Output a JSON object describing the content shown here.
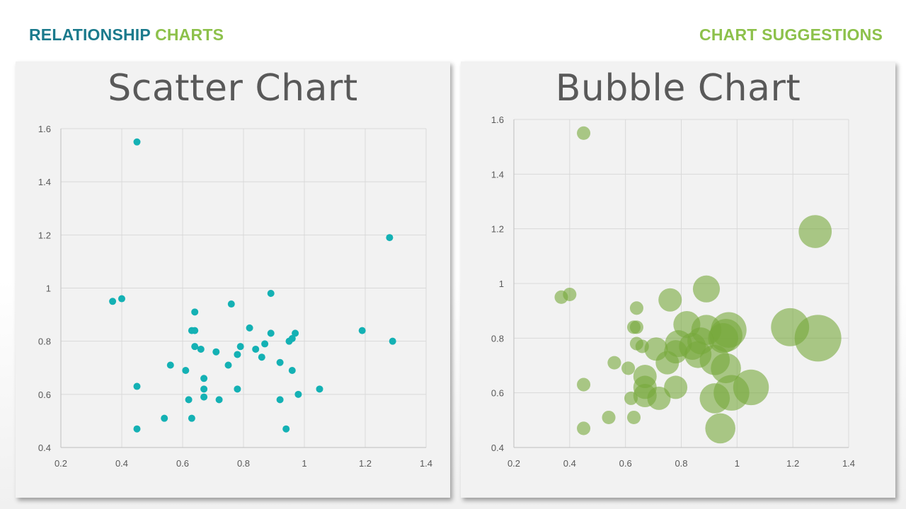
{
  "header": {
    "left_part1": "RELATIONSHIP",
    "left_part2": "CHARTS",
    "right": "CHART SUGGESTIONS"
  },
  "colors": {
    "teal": "#1b7a8c",
    "green": "#8dc14b",
    "scatter_point": "#14b1b4",
    "bubble_fill": "#77a83a",
    "gridline": "#d9d9d9",
    "axis_text": "#595959"
  },
  "chart_data": [
    {
      "type": "scatter",
      "title": "Scatter Chart",
      "xlim": [
        0.2,
        1.4
      ],
      "ylim": [
        0.4,
        1.6
      ],
      "x_ticks": [
        "0.2",
        "0.4",
        "0.6",
        "0.8",
        "1",
        "1.2",
        "1.4"
      ],
      "y_ticks": [
        "0.4",
        "0.6",
        "0.8",
        "1",
        "1.2",
        "1.4",
        "1.6"
      ],
      "grid": true,
      "points": [
        [
          0.45,
          1.55
        ],
        [
          1.28,
          1.19
        ],
        [
          1.29,
          0.8
        ],
        [
          1.19,
          0.84
        ],
        [
          0.37,
          0.95
        ],
        [
          0.4,
          0.96
        ],
        [
          0.45,
          0.63
        ],
        [
          0.45,
          0.47
        ],
        [
          0.54,
          0.51
        ],
        [
          0.56,
          0.71
        ],
        [
          0.61,
          0.69
        ],
        [
          0.62,
          0.58
        ],
        [
          0.63,
          0.51
        ],
        [
          0.63,
          0.84
        ],
        [
          0.64,
          0.84
        ],
        [
          0.64,
          0.91
        ],
        [
          0.64,
          0.78
        ],
        [
          0.66,
          0.77
        ],
        [
          0.67,
          0.66
        ],
        [
          0.67,
          0.62
        ],
        [
          0.67,
          0.59
        ],
        [
          0.71,
          0.76
        ],
        [
          0.72,
          0.58
        ],
        [
          0.75,
          0.71
        ],
        [
          0.76,
          0.94
        ],
        [
          0.78,
          0.75
        ],
        [
          0.78,
          0.62
        ],
        [
          0.79,
          0.78
        ],
        [
          0.82,
          0.85
        ],
        [
          0.84,
          0.77
        ],
        [
          0.86,
          0.74
        ],
        [
          0.87,
          0.79
        ],
        [
          0.89,
          0.98
        ],
        [
          0.89,
          0.83
        ],
        [
          0.92,
          0.72
        ],
        [
          0.92,
          0.58
        ],
        [
          0.94,
          0.47
        ],
        [
          0.95,
          0.8
        ],
        [
          0.96,
          0.81
        ],
        [
          0.96,
          0.69
        ],
        [
          0.97,
          0.83
        ],
        [
          0.98,
          0.6
        ],
        [
          1.05,
          0.62
        ]
      ]
    },
    {
      "type": "bubble",
      "title": "Bubble Chart",
      "xlim": [
        0.2,
        1.4
      ],
      "ylim": [
        0.4,
        1.6
      ],
      "x_ticks": [
        "0.2",
        "0.4",
        "0.6",
        "0.8",
        "1",
        "1.2",
        "1.4"
      ],
      "y_ticks": [
        "0.4",
        "0.6",
        "0.8",
        "1",
        "1.2",
        "1.4",
        "1.6"
      ],
      "grid": true,
      "points": [
        [
          0.45,
          1.55,
          1
        ],
        [
          1.28,
          1.19,
          6
        ],
        [
          1.29,
          0.8,
          12
        ],
        [
          1.19,
          0.84,
          8
        ],
        [
          0.37,
          0.95,
          1
        ],
        [
          0.4,
          0.96,
          1
        ],
        [
          0.45,
          0.63,
          1
        ],
        [
          0.45,
          0.47,
          1
        ],
        [
          0.54,
          0.51,
          1
        ],
        [
          0.56,
          0.71,
          1
        ],
        [
          0.61,
          0.69,
          1
        ],
        [
          0.62,
          0.58,
          1
        ],
        [
          0.63,
          0.51,
          1
        ],
        [
          0.63,
          0.84,
          1
        ],
        [
          0.64,
          0.84,
          1
        ],
        [
          0.64,
          0.91,
          1
        ],
        [
          0.64,
          0.78,
          1
        ],
        [
          0.66,
          0.77,
          1
        ],
        [
          0.67,
          0.66,
          3
        ],
        [
          0.67,
          0.62,
          3
        ],
        [
          0.67,
          0.59,
          3
        ],
        [
          0.71,
          0.76,
          3
        ],
        [
          0.72,
          0.58,
          3
        ],
        [
          0.75,
          0.71,
          3
        ],
        [
          0.76,
          0.94,
          3
        ],
        [
          0.78,
          0.75,
          3
        ],
        [
          0.78,
          0.62,
          3
        ],
        [
          0.79,
          0.78,
          4
        ],
        [
          0.82,
          0.85,
          4
        ],
        [
          0.84,
          0.77,
          4
        ],
        [
          0.86,
          0.74,
          4
        ],
        [
          0.87,
          0.79,
          4
        ],
        [
          0.89,
          0.98,
          4
        ],
        [
          0.89,
          0.83,
          5
        ],
        [
          0.92,
          0.72,
          5
        ],
        [
          0.92,
          0.58,
          5
        ],
        [
          0.94,
          0.47,
          5
        ],
        [
          0.95,
          0.8,
          5
        ],
        [
          0.96,
          0.81,
          6
        ],
        [
          0.96,
          0.69,
          5
        ],
        [
          0.97,
          0.83,
          7
        ],
        [
          0.98,
          0.6,
          7
        ],
        [
          1.05,
          0.62,
          7
        ]
      ]
    }
  ]
}
